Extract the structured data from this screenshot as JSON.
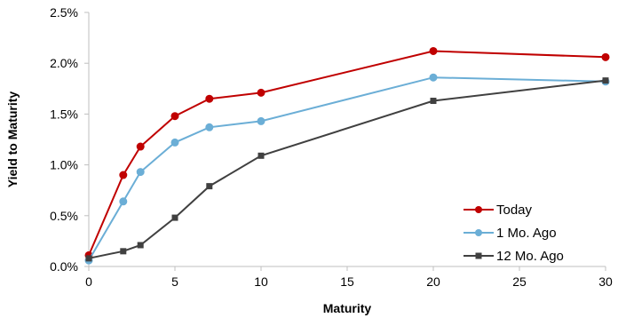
{
  "chart_data": {
    "type": "line",
    "xlabel": "Maturity",
    "ylabel": "Yield to Maturity",
    "xlim": [
      0,
      30
    ],
    "ylim": [
      0,
      2.5
    ],
    "x_ticks": [
      "0",
      "5",
      "10",
      "15",
      "20",
      "25",
      "30"
    ],
    "y_ticks": [
      "0.0%",
      "0.5%",
      "1.0%",
      "1.5%",
      "2.0%",
      "2.5%"
    ],
    "grid": false,
    "legend_position": "bottom-right",
    "series": [
      {
        "name": "Today",
        "color": "#C00000",
        "marker": "circle",
        "points": [
          [
            0,
            0.11
          ],
          [
            2,
            0.9
          ],
          [
            3,
            1.18
          ],
          [
            5,
            1.48
          ],
          [
            7,
            1.65
          ],
          [
            10,
            1.71
          ],
          [
            20,
            2.12
          ],
          [
            30,
            2.06
          ]
        ]
      },
      {
        "name": "1 Mo. Ago",
        "color": "#6BAED6",
        "marker": "circle",
        "points": [
          [
            0,
            0.06
          ],
          [
            2,
            0.64
          ],
          [
            3,
            0.93
          ],
          [
            5,
            1.22
          ],
          [
            7,
            1.37
          ],
          [
            10,
            1.43
          ],
          [
            20,
            1.86
          ],
          [
            30,
            1.82
          ]
        ]
      },
      {
        "name": "12 Mo. Ago",
        "color": "#404040",
        "marker": "square",
        "points": [
          [
            0,
            0.08
          ],
          [
            2,
            0.15
          ],
          [
            3,
            0.21
          ],
          [
            5,
            0.48
          ],
          [
            7,
            0.79
          ],
          [
            10,
            1.09
          ],
          [
            20,
            1.63
          ],
          [
            30,
            1.83
          ]
        ]
      }
    ]
  }
}
